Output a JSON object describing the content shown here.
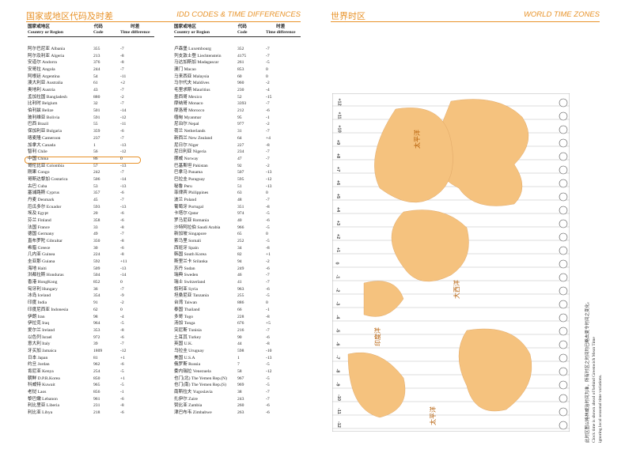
{
  "left": {
    "title_cn": "国家或地区代码及时差",
    "title_en": "IDD CODES & TIME DIFFERENCES",
    "header": [
      "国家或地区\nCountry or Region",
      "代码\nCode",
      "时差\nTime difference"
    ],
    "tables": [
      [
        [
          "阿尔巴尼亚 Albania",
          "355",
          "-7"
        ],
        [
          "阿尔及利亚 Algeria",
          "213",
          "-8"
        ],
        [
          "安道尔 Andorra",
          "376",
          "-8"
        ],
        [
          "安哥拉 Angola",
          "244",
          "-7"
        ],
        [
          "阿根廷 Argentina",
          "54",
          "-11"
        ],
        [
          "澳大利亚 Australia",
          "61",
          "+2"
        ],
        [
          "奥地利 Austria",
          "43",
          "-7"
        ],
        [
          "孟加拉国 Bangladesh",
          "880",
          "-2"
        ],
        [
          "比利时 Belgium",
          "32",
          "-7"
        ],
        [
          "伯利兹 Belize",
          "501",
          "-14"
        ],
        [
          "玻利维亚 Bolivia",
          "591",
          "-12"
        ],
        [
          "巴西 Brazil",
          "55",
          "-11"
        ],
        [
          "保加利亚 Bulgaria",
          "359",
          "-6"
        ],
        [
          "喀麦隆 Cameroon",
          "237",
          "-7"
        ],
        [
          "加拿大 Canada",
          "1",
          "-13"
        ],
        [
          "智利 Chile",
          "56",
          "-12"
        ],
        [
          "中国 China",
          "86",
          "0"
        ],
        [
          "哥伦比亚 Colombia",
          "57",
          "-13"
        ],
        [
          "刚果 Congo",
          "242",
          "-7"
        ],
        [
          "哥斯达黎加 Costarica",
          "506",
          "-14"
        ],
        [
          "古巴 Cuba",
          "53",
          "-13"
        ],
        [
          "塞浦路斯 Cyprus",
          "357",
          "-6"
        ],
        [
          "丹麦 Denmark",
          "45",
          "-7"
        ],
        [
          "厄瓜多尔 Ecuador",
          "593",
          "-13"
        ],
        [
          "埃及 Egypt",
          "20",
          "-6"
        ],
        [
          "芬兰 Finland",
          "358",
          "-6"
        ],
        [
          "法国 France",
          "33",
          "-8"
        ],
        [
          "德国 Germany",
          "49",
          "-7"
        ],
        [
          "直布罗陀 Gibraltar",
          "350",
          "-8"
        ],
        [
          "希腊 Greece",
          "30",
          "-6"
        ],
        [
          "几内亚 Guinea",
          "224",
          "-8"
        ],
        [
          "圭亚那 Guiana",
          "592",
          "+11"
        ],
        [
          "海地 Haiti",
          "509",
          "-13"
        ],
        [
          "洪都拉斯 Honduras",
          "504",
          "-14"
        ],
        [
          "香港 HongKong",
          "852",
          "0"
        ],
        [
          "匈牙利 Hungary",
          "36",
          "-7"
        ],
        [
          "冰岛 Iceland",
          "354",
          "-9"
        ],
        [
          "印度 India",
          "91",
          "-2"
        ],
        [
          "印度尼西亚 Indonesia",
          "62",
          "0"
        ],
        [
          "伊朗 Iran",
          "98",
          "-4"
        ],
        [
          "伊拉克 Iraq",
          "964",
          "-5"
        ],
        [
          "爱尔兰 Ireland",
          "353",
          "-8"
        ],
        [
          "以色列 Israel",
          "972",
          "-6"
        ],
        [
          "意大利 Italy",
          "39",
          "-7"
        ],
        [
          "牙买加 Jamaica",
          "1809",
          "-12"
        ],
        [
          "日本 Japan",
          "81",
          "+1"
        ],
        [
          "约旦 Jordan",
          "962",
          "-6"
        ],
        [
          "肯尼亚 Kenya",
          "254",
          "-5"
        ],
        [
          "朝鲜 D.P.R.Korea",
          "850",
          "+1"
        ],
        [
          "科威特 Kuwait",
          "965",
          "-5"
        ],
        [
          "老挝 Laos",
          "856",
          "-1"
        ],
        [
          "黎巴嫩 Lebanon",
          "961",
          "-6"
        ],
        [
          "利比里亚 Liberia",
          "231",
          "-8"
        ],
        [
          "利比亚 Libya",
          "218",
          "-6"
        ]
      ],
      [
        [
          "卢森堡 Luxembourg",
          "352",
          "-7"
        ],
        [
          "列支敦士登 Liechtenstein",
          "4175",
          "-7"
        ],
        [
          "马达加斯加 Madagascar",
          "261",
          "-5"
        ],
        [
          "澳门 Macao",
          "853",
          "0"
        ],
        [
          "马来西亚 Malaysia",
          "60",
          "0"
        ],
        [
          "马尔代夫 Maldives",
          "960",
          "-2"
        ],
        [
          "毛里求斯 Mauritius",
          "230",
          "-4"
        ],
        [
          "墨西哥 Mexico",
          "52",
          "-15"
        ],
        [
          "摩纳哥 Monaco",
          "3393",
          "-7"
        ],
        [
          "摩洛哥 Morocco",
          "212",
          "-6"
        ],
        [
          "缅甸 Myanmar",
          "95",
          "-1"
        ],
        [
          "尼泊尔 Nepal",
          "977",
          "-2"
        ],
        [
          "荷兰 Netherlands",
          "31",
          "-7"
        ],
        [
          "新西兰 New Zealand",
          "64",
          "+4"
        ],
        [
          "尼日尔 Niger",
          "227",
          "-8"
        ],
        [
          "尼日利亚 Nigeria",
          "234",
          "-7"
        ],
        [
          "挪威 Norway",
          "47",
          "-7"
        ],
        [
          "巴基斯坦 Pakistan",
          "92",
          "-2"
        ],
        [
          "巴拿马 Panama",
          "507",
          "-13"
        ],
        [
          "巴拉圭 Paraguay",
          "595",
          "-12"
        ],
        [
          "秘鲁 Peru",
          "51",
          "-13"
        ],
        [
          "菲律宾 Philippines",
          "63",
          "0"
        ],
        [
          "波兰 Poland",
          "48",
          "-7"
        ],
        [
          "葡萄牙 Portugal",
          "351",
          "-8"
        ],
        [
          "卡塔尔 Qatar",
          "974",
          "-5"
        ],
        [
          "罗马尼亚 Romania",
          "40",
          "-6"
        ],
        [
          "沙特阿拉伯 Saudi Arabia",
          "966",
          "-5"
        ],
        [
          "新加坡 Singapore",
          "65",
          "0"
        ],
        [
          "索马里 Somali",
          "252",
          "-5"
        ],
        [
          "西班牙 Spain",
          "34",
          "-8"
        ],
        [
          "韩国 South Korea",
          "82",
          "+1"
        ],
        [
          "斯里兰卡 Srilanka",
          "94",
          "-2"
        ],
        [
          "苏丹 Sudan",
          "249",
          "-6"
        ],
        [
          "瑞典 Sweden",
          "46",
          "-7"
        ],
        [
          "瑞士 Switzerland",
          "41",
          "-7"
        ],
        [
          "叙利亚 Syria",
          "963",
          "-6"
        ],
        [
          "坦桑尼亚 Tanzania",
          "255",
          "-5"
        ],
        [
          "台湾 Taiwan",
          "886",
          "0"
        ],
        [
          "泰国 Thailand",
          "66",
          "-1"
        ],
        [
          "多哥 Togo",
          "228",
          "-8"
        ],
        [
          "汤加 Tonga",
          "676",
          "+5"
        ],
        [
          "突尼斯 Tunisia",
          "216",
          "-7"
        ],
        [
          "土耳其 Turkey",
          "90",
          "-6"
        ],
        [
          "英国 U.K.",
          "44",
          "-8"
        ],
        [
          "乌拉圭 Uruguay",
          "598",
          "-10"
        ],
        [
          "美国 U.S.A",
          "1",
          "-13"
        ],
        [
          "俄罗斯 Russia",
          "7",
          "-5"
        ],
        [
          "委内瑞拉 Venezuela",
          "58",
          "-12"
        ],
        [
          "也门(北) The Yemen Rep.(N)",
          "967",
          "-5"
        ],
        [
          "也门(南) The Yemen Rep.(S)",
          "969",
          "-5"
        ],
        [
          "南斯拉夫 Yugoslavia",
          "38",
          "-7"
        ],
        [
          "扎伊尔 Zaire",
          "243",
          "-7"
        ],
        [
          "赞比亚 Zambia",
          "260",
          "-6"
        ],
        [
          "津巴布韦 Zimbabwe",
          "263",
          "-6"
        ]
      ]
    ]
  },
  "right": {
    "title_cn": "世界时区",
    "title_en": "WORLD TIME ZONES",
    "zones": [
      "+12",
      "+11",
      "+10",
      "+9",
      "+8",
      "+7",
      "+6",
      "+5",
      "+4",
      "+3",
      "+2",
      "+1",
      "0",
      "-1",
      "-2",
      "-3",
      "-4",
      "-5",
      "-6",
      "-7",
      "-8",
      "-9",
      "-10",
      "-11",
      "-12"
    ],
    "labels": [
      "太平洋",
      "大西洋",
      "印度洋",
      "太平洋"
    ],
    "note_cn": "此时区图以格林威治时间为准，所有时区之时间均已略去夏令时间之变化。",
    "note_en": [
      "Clock time is shown ahead of/behind Greenwich Mean Time",
      "ignoring local seasonal time variations."
    ]
  }
}
